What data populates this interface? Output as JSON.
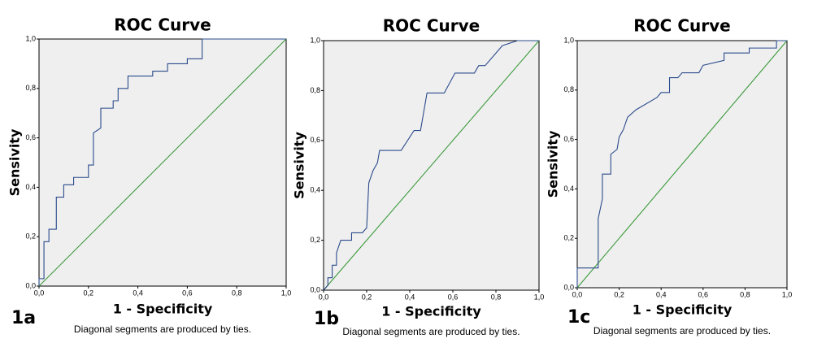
{
  "chart_data": [
    {
      "type": "line",
      "title": "ROC Curve",
      "x_label": "1 - Specificity",
      "y_label": "Sensivity",
      "panel_label": "1a",
      "footnote": "Diagonal segments are produced by ties.",
      "xlim": [
        0,
        1
      ],
      "ylim": [
        0,
        1
      ],
      "xticks": [
        {
          "value": 0,
          "label": "0,0"
        },
        {
          "value": 0.2,
          "label": "0,2"
        },
        {
          "value": 0.4,
          "label": "0,4"
        },
        {
          "value": 0.6,
          "label": "0,6"
        },
        {
          "value": 0.8,
          "label": "0,8"
        },
        {
          "value": 1,
          "label": "1,0"
        }
      ],
      "yticks": [
        {
          "value": 0,
          "label": "0,0"
        },
        {
          "value": 0.2,
          "label": "0,2"
        },
        {
          "value": 0.4,
          "label": "0,4"
        },
        {
          "value": 0.6,
          "label": "0,6"
        },
        {
          "value": 0.8,
          "label": "0,8"
        },
        {
          "value": 1,
          "label": "1,0"
        }
      ],
      "series": [
        {
          "color": "#2b4b8c",
          "x": [
            0,
            0,
            0.02,
            0.02,
            0.04,
            0.04,
            0.07,
            0.07,
            0.1,
            0.1,
            0.14,
            0.14,
            0.2,
            0.2,
            0.22,
            0.22,
            0.25,
            0.25,
            0.3,
            0.3,
            0.32,
            0.32,
            0.36,
            0.36,
            0.46,
            0.46,
            0.52,
            0.52,
            0.6,
            0.6,
            0.66,
            0.66,
            1.0
          ],
          "values": [
            0,
            0.03,
            0.03,
            0.18,
            0.18,
            0.23,
            0.23,
            0.36,
            0.36,
            0.41,
            0.41,
            0.44,
            0.44,
            0.49,
            0.49,
            0.62,
            0.64,
            0.72,
            0.72,
            0.75,
            0.75,
            0.8,
            0.8,
            0.85,
            0.85,
            0.87,
            0.87,
            0.9,
            0.9,
            0.92,
            0.92,
            1.0,
            1.0
          ]
        },
        {
          "color": "#3a9a3a",
          "x": [
            0,
            1
          ],
          "values": [
            0,
            1
          ]
        }
      ]
    },
    {
      "type": "line",
      "title": "ROC Curve",
      "x_label": "1 - Specificity",
      "y_label": "Sensivity",
      "panel_label": "1b",
      "footnote": "Diagonal segments are produced by ties.",
      "xlim": [
        0,
        1
      ],
      "ylim": [
        0,
        1
      ],
      "xticks": [
        {
          "value": 0,
          "label": "0,0"
        },
        {
          "value": 0.2,
          "label": "0,2"
        },
        {
          "value": 0.4,
          "label": "0,4"
        },
        {
          "value": 0.6,
          "label": "0,6"
        },
        {
          "value": 0.8,
          "label": "0,8"
        },
        {
          "value": 1,
          "label": "1,0"
        }
      ],
      "yticks": [
        {
          "value": 0,
          "label": "0,0"
        },
        {
          "value": 0.2,
          "label": "0,2"
        },
        {
          "value": 0.4,
          "label": "0,4"
        },
        {
          "value": 0.6,
          "label": "0,6"
        },
        {
          "value": 0.8,
          "label": "0,8"
        },
        {
          "value": 1,
          "label": "1,0"
        }
      ],
      "series": [
        {
          "color": "#2b4b8c",
          "x": [
            0,
            0.02,
            0.02,
            0.04,
            0.04,
            0.06,
            0.06,
            0.08,
            0.13,
            0.13,
            0.18,
            0.2,
            0.21,
            0.23,
            0.25,
            0.26,
            0.36,
            0.42,
            0.45,
            0.46,
            0.48,
            0.56,
            0.61,
            0.7,
            0.72,
            0.75,
            0.83,
            0.9,
            1.0
          ],
          "values": [
            0,
            0.02,
            0.05,
            0.05,
            0.1,
            0.1,
            0.15,
            0.2,
            0.2,
            0.23,
            0.23,
            0.25,
            0.43,
            0.48,
            0.51,
            0.56,
            0.56,
            0.64,
            0.64,
            0.69,
            0.79,
            0.79,
            0.87,
            0.87,
            0.9,
            0.9,
            0.98,
            1.0,
            1.0
          ]
        },
        {
          "color": "#3a9a3a",
          "x": [
            0,
            1
          ],
          "values": [
            0,
            1
          ]
        }
      ]
    },
    {
      "type": "line",
      "title": "ROC Curve",
      "x_label": "1 - Specificity",
      "y_label": "Sensivity",
      "panel_label": "1c",
      "footnote": "Diagonal segments are produced by ties.",
      "xlim": [
        0,
        1
      ],
      "ylim": [
        0,
        1
      ],
      "xticks": [
        {
          "value": 0,
          "label": "0,0"
        },
        {
          "value": 0.2,
          "label": "0,2"
        },
        {
          "value": 0.4,
          "label": "0,4"
        },
        {
          "value": 0.6,
          "label": "0,6"
        },
        {
          "value": 0.8,
          "label": "0,8"
        },
        {
          "value": 1,
          "label": "1,0"
        }
      ],
      "yticks": [
        {
          "value": 0,
          "label": "0,0"
        },
        {
          "value": 0.2,
          "label": "0,2"
        },
        {
          "value": 0.4,
          "label": "0,4"
        },
        {
          "value": 0.6,
          "label": "0,6"
        },
        {
          "value": 0.8,
          "label": "0,8"
        },
        {
          "value": 1,
          "label": "1,0"
        }
      ],
      "series": [
        {
          "color": "#2b4b8c",
          "x": [
            0,
            0,
            0.1,
            0.1,
            0.12,
            0.12,
            0.16,
            0.16,
            0.19,
            0.2,
            0.22,
            0.24,
            0.28,
            0.38,
            0.4,
            0.44,
            0.44,
            0.48,
            0.5,
            0.58,
            0.6,
            0.7,
            0.7,
            0.82,
            0.82,
            0.95,
            0.95,
            1.0
          ],
          "values": [
            0,
            0.08,
            0.08,
            0.28,
            0.36,
            0.46,
            0.46,
            0.54,
            0.56,
            0.61,
            0.64,
            0.69,
            0.72,
            0.77,
            0.79,
            0.79,
            0.85,
            0.85,
            0.87,
            0.87,
            0.9,
            0.92,
            0.95,
            0.95,
            0.97,
            0.97,
            1.0,
            1.0
          ]
        },
        {
          "color": "#3a9a3a",
          "x": [
            0,
            1
          ],
          "values": [
            0,
            1
          ]
        }
      ]
    }
  ]
}
